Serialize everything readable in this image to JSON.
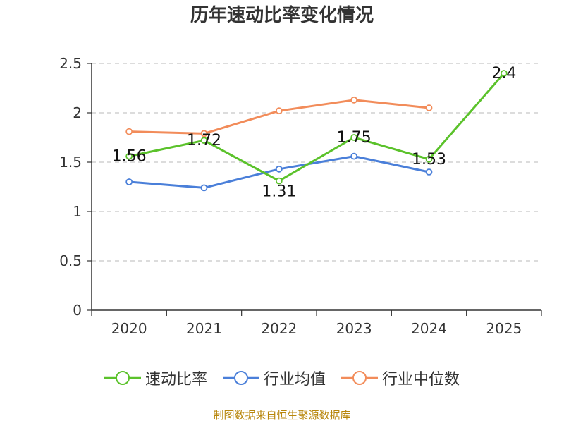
{
  "chart_data": {
    "type": "line",
    "title": "历年速动比率变化情况",
    "categories": [
      "2020",
      "2021",
      "2022",
      "2023",
      "2024",
      "2025"
    ],
    "ylim": [
      0,
      2.5
    ],
    "yticks": [
      "0",
      "0.5",
      "1",
      "1.5",
      "2",
      "2.5"
    ],
    "grid": true,
    "legend_position": "bottom",
    "series": [
      {
        "name": "速动比率",
        "color": "#5bc22b",
        "values": [
          1.56,
          1.72,
          1.31,
          1.75,
          1.53,
          2.4
        ],
        "labels": [
          "1.56",
          "1.72",
          "1.31",
          "1.75",
          "1.53",
          "2.4"
        ]
      },
      {
        "name": "行业均值",
        "color": "#4a7fd9",
        "values": [
          1.3,
          1.24,
          1.43,
          1.56,
          1.4,
          null
        ]
      },
      {
        "name": "行业中位数",
        "color": "#f28c5a",
        "values": [
          1.81,
          1.79,
          2.02,
          2.13,
          2.05,
          null
        ]
      }
    ]
  },
  "source_text": "制图数据来自恒生聚源数据库"
}
